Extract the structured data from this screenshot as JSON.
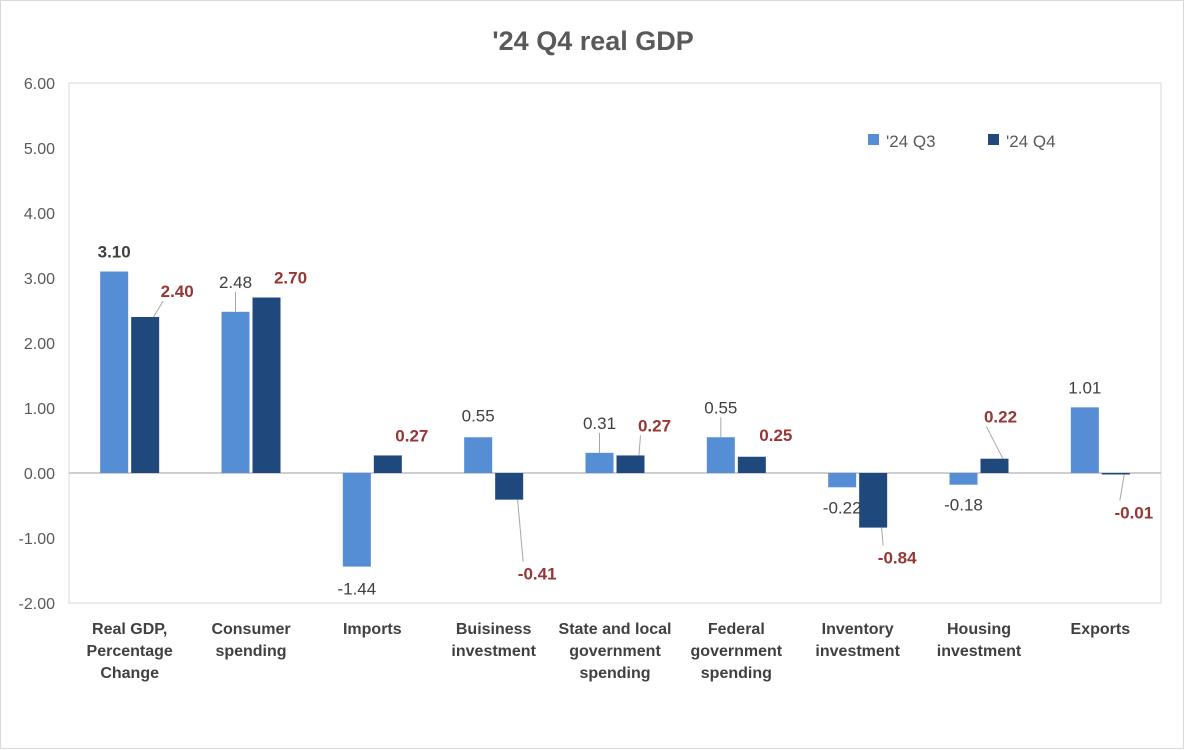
{
  "chart_data": {
    "type": "bar",
    "title": "'24 Q4 real GDP",
    "xlabel": "",
    "ylabel": "",
    "ylim": [
      -2,
      6
    ],
    "yticks": [
      "6.00",
      "5.00",
      "4.00",
      "3.00",
      "2.00",
      "1.00",
      "0.00",
      "-1.00",
      "-2.00"
    ],
    "grid": false,
    "legend_position": "top-right",
    "categories": [
      [
        "Real GDP,",
        "Percentage",
        "Change"
      ],
      [
        "Consumer",
        "spending"
      ],
      [
        "Imports"
      ],
      [
        "Buisiness",
        "investment"
      ],
      [
        "State and local",
        "government",
        "spending"
      ],
      [
        "Federal",
        "government",
        "spending"
      ],
      [
        "Inventory",
        "investment"
      ],
      [
        "Housing",
        "investment"
      ],
      [
        "Exports"
      ]
    ],
    "series": [
      {
        "name": "'24 Q3",
        "color": "#558ed5",
        "values": [
          3.1,
          2.48,
          -1.44,
          0.55,
          0.31,
          0.55,
          -0.22,
          -0.18,
          1.01
        ],
        "labels": [
          "3.10",
          "2.48",
          "-1.44",
          "0.55",
          "0.31",
          "0.55",
          "-0.22",
          "-0.18",
          "1.01"
        ]
      },
      {
        "name": "'24 Q4",
        "color": "#1f497d",
        "values": [
          2.4,
          2.7,
          0.27,
          -0.41,
          0.27,
          0.25,
          -0.84,
          0.22,
          -0.01
        ],
        "labels": [
          "2.40",
          "2.70",
          "0.27",
          "-0.41",
          "0.27",
          "0.25",
          "-0.84",
          "0.22",
          "-0.01"
        ]
      }
    ],
    "colors": {
      "q3_label": "#404040",
      "q4_label": "#953735",
      "axis": "#bfbfbf"
    }
  }
}
